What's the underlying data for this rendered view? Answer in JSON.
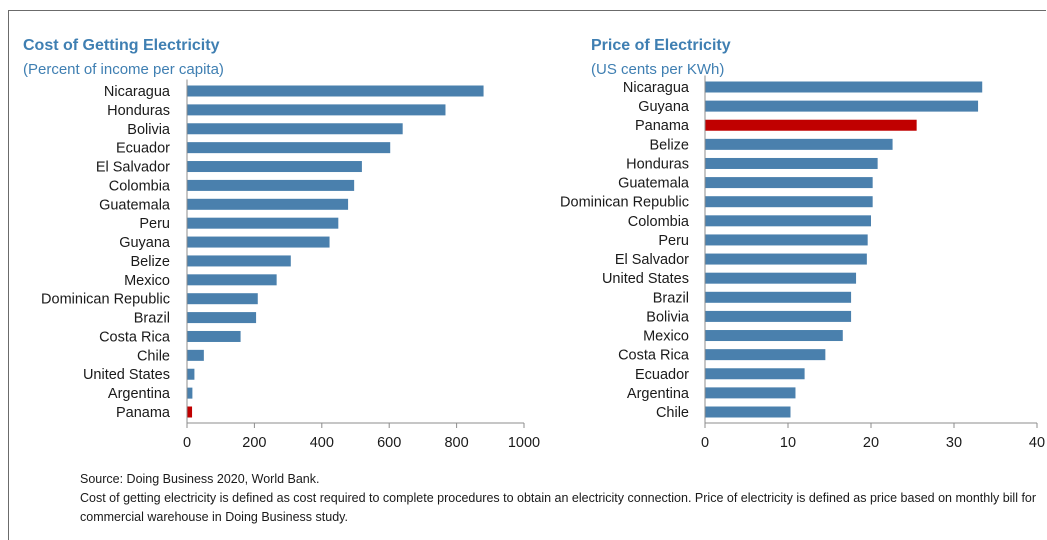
{
  "colors": {
    "bar": "#4a80ad",
    "highlight": "#c00000",
    "axis": "#8c8c8c",
    "title": "#3f7fb2"
  },
  "chart_data": [
    {
      "type": "bar",
      "orientation": "horizontal",
      "title": "Cost of Getting Electricity",
      "subtitle": "(Percent of income per capita)",
      "xlim": [
        0,
        1000
      ],
      "ticks": [
        0,
        200,
        400,
        600,
        800,
        1000
      ],
      "highlight": "Panama",
      "categories": [
        "Nicaragua",
        "Honduras",
        "Bolivia",
        "Ecuador",
        "El Salvador",
        "Colombia",
        "Guatemala",
        "Peru",
        "Guyana",
        "Belize",
        "Mexico",
        "Dominican Republic",
        "Brazil",
        "Costa Rica",
        "Chile",
        "United States",
        "Argentina",
        "Panama"
      ],
      "values": [
        880,
        767,
        640,
        603,
        519,
        496,
        478,
        449,
        423,
        308,
        266,
        210,
        205,
        159,
        50,
        22,
        16,
        15
      ],
      "grid": false
    },
    {
      "type": "bar",
      "orientation": "horizontal",
      "title": "Price of Electricity",
      "subtitle": "(US cents per KWh)",
      "xlim": [
        0,
        40
      ],
      "ticks": [
        0,
        10,
        20,
        30,
        40
      ],
      "highlight": "Panama",
      "categories": [
        "Nicaragua",
        "Guyana",
        "Panama",
        "Belize",
        "Honduras",
        "Guatemala",
        "Dominican Republic",
        "Colombia",
        "Peru",
        "El Salvador",
        "United States",
        "Brazil",
        "Bolivia",
        "Mexico",
        "Costa Rica",
        "Ecuador",
        "Argentina",
        "Chile"
      ],
      "values": [
        33.4,
        32.9,
        25.5,
        22.6,
        20.8,
        20.2,
        20.2,
        20.0,
        19.6,
        19.5,
        18.2,
        17.6,
        17.6,
        16.6,
        14.5,
        12.0,
        10.9,
        10.3
      ],
      "grid": false
    }
  ],
  "notes": {
    "source": "Source: Doing Business 2020, World Bank.",
    "definition": "Cost of getting electricity is defined as cost required to complete procedures to obtain an electricity connection. Price of electricity is defined as price based on monthly bill for commercial warehouse in Doing Business study."
  }
}
